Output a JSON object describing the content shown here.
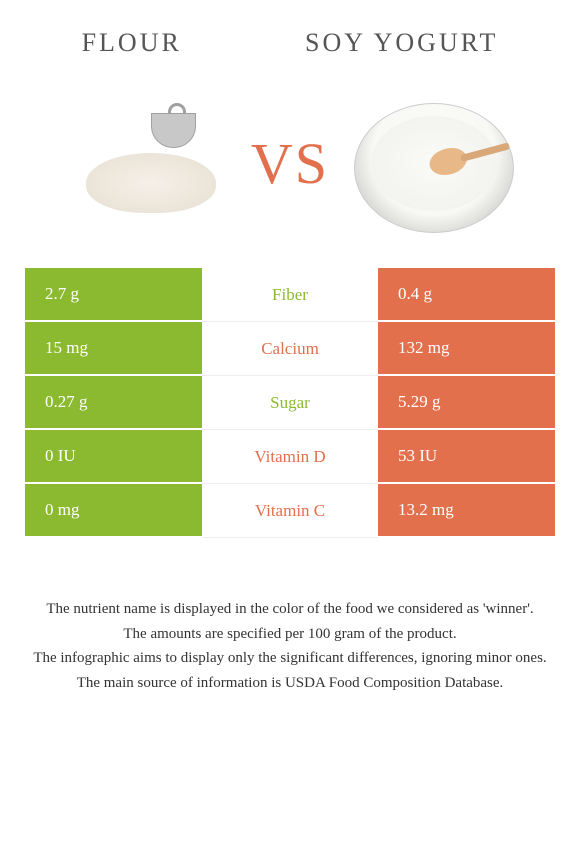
{
  "header": {
    "left_title": "FLOUR",
    "right_title": "SOY YOGURT"
  },
  "vs_label": "VS",
  "colors": {
    "green": "#8bba31",
    "orange": "#e2704c",
    "text": "#333333",
    "background": "#ffffff"
  },
  "rows": [
    {
      "left": "2.7 g",
      "label": "Fiber",
      "right": "0.4 g",
      "winner": "left"
    },
    {
      "left": "15 mg",
      "label": "Calcium",
      "right": "132 mg",
      "winner": "right"
    },
    {
      "left": "0.27 g",
      "label": "Sugar",
      "right": "5.29 g",
      "winner": "left"
    },
    {
      "left": "0 IU",
      "label": "Vitamin D",
      "right": "53 IU",
      "winner": "right"
    },
    {
      "left": "0 mg",
      "label": "Vitamin C",
      "right": "13.2 mg",
      "winner": "right"
    }
  ],
  "footer": {
    "line1": "The nutrient name is displayed in the color of the food we considered as 'winner'.",
    "line2": "The amounts are specified per 100 gram of the product.",
    "line3": "The infographic aims to display only the significant differences, ignoring minor ones.",
    "line4": "The main source of information is USDA Food Composition Database."
  }
}
